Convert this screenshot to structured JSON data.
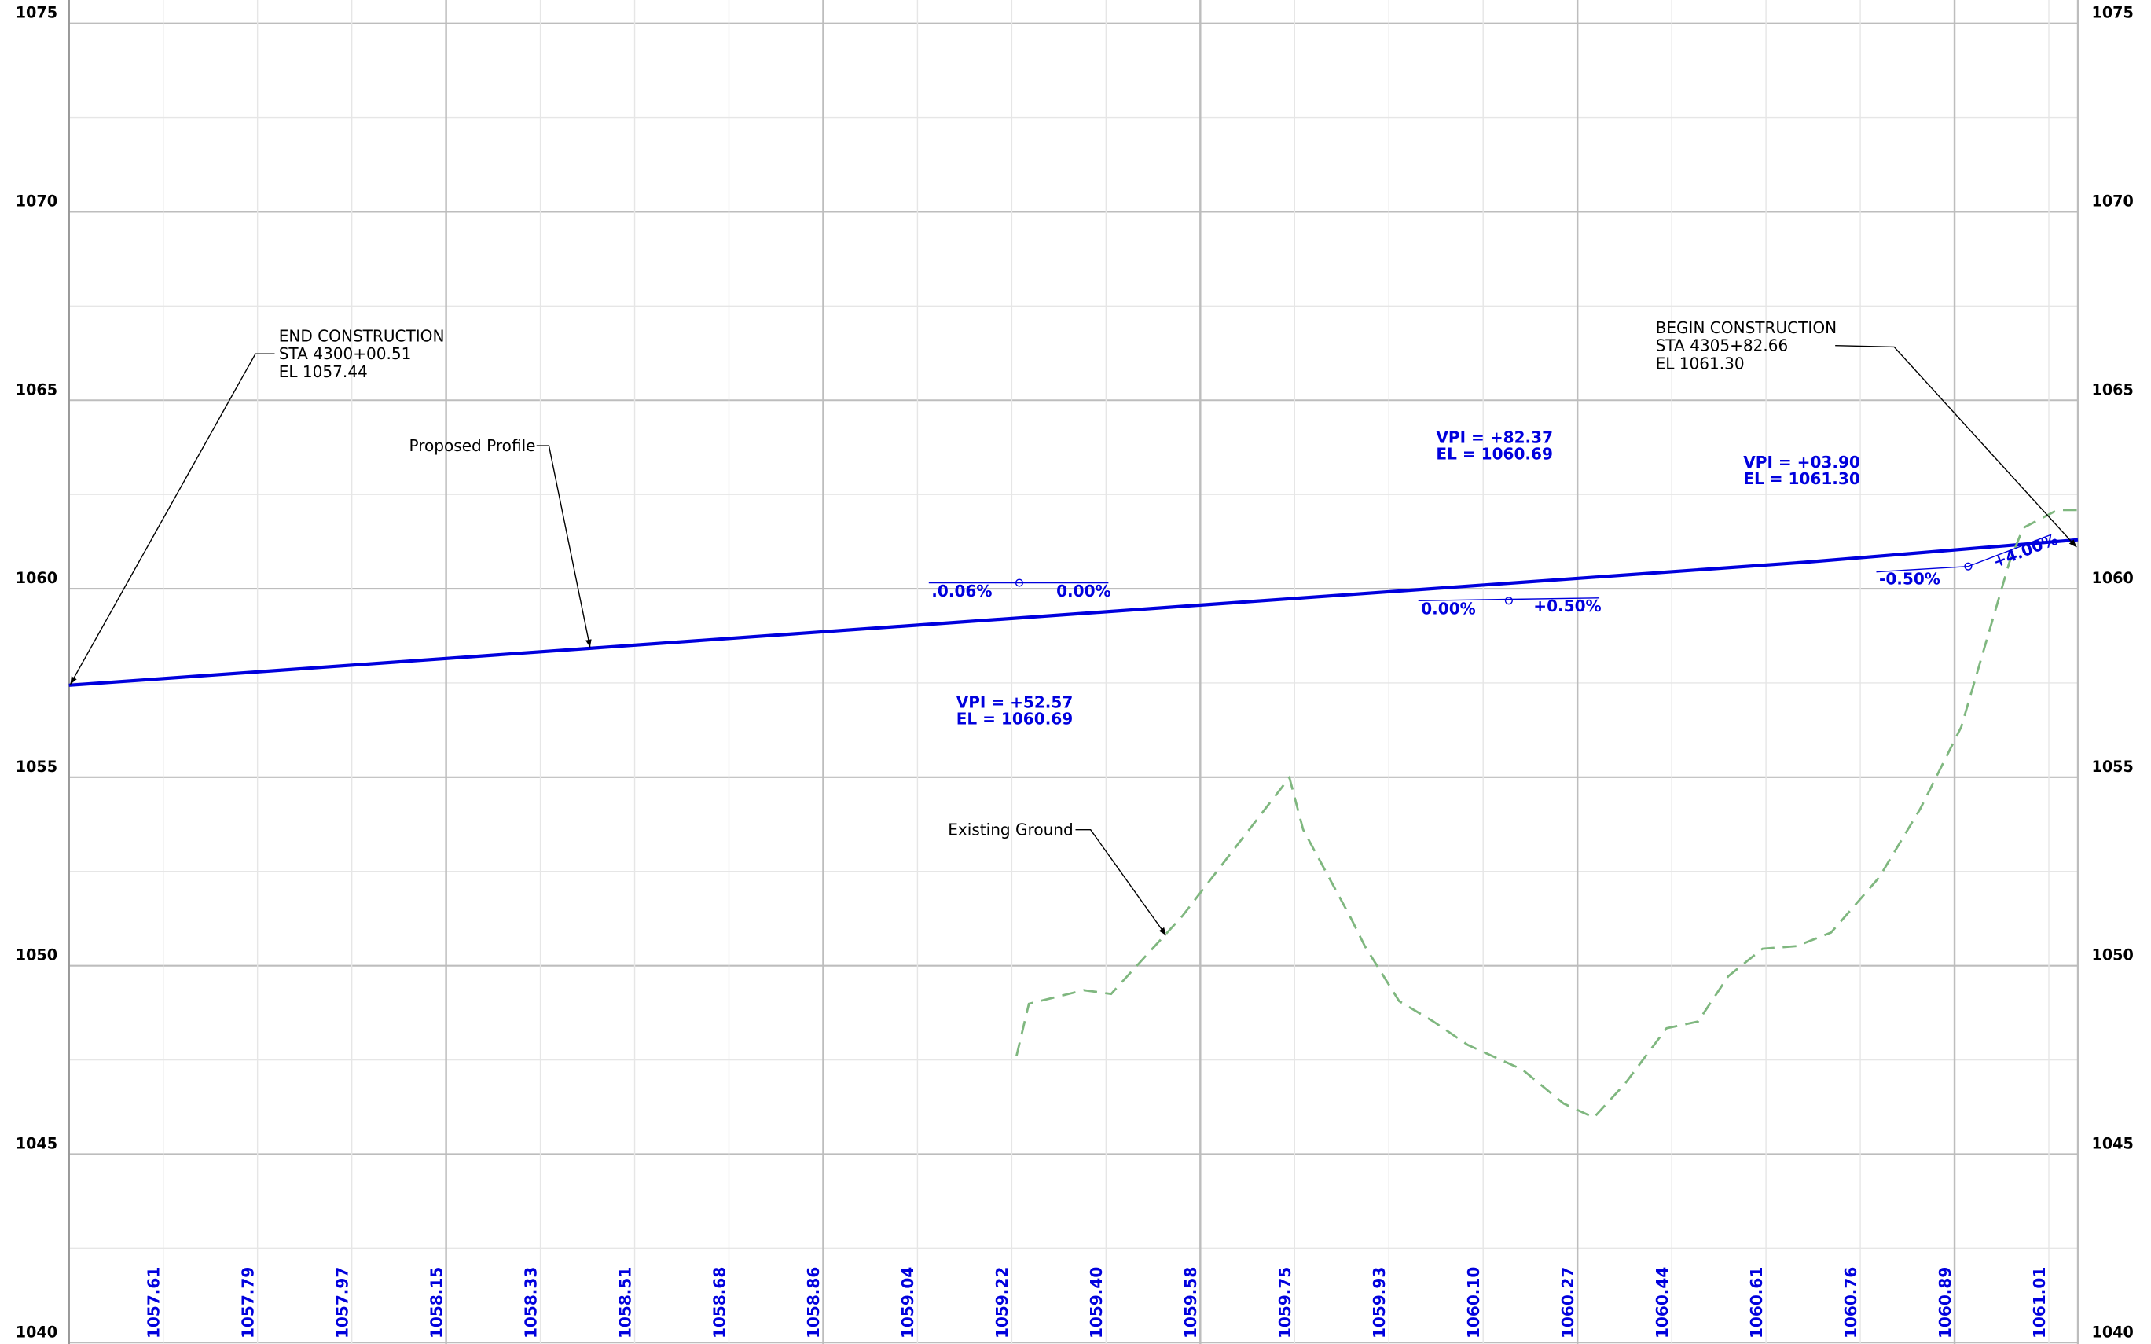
{
  "chart_data": {
    "type": "line",
    "xlim": [
      430000.51,
      430582.66
    ],
    "ylim": [
      1040,
      1075
    ],
    "yticks": [
      1040,
      1045,
      1050,
      1055,
      1060,
      1065,
      1070,
      1075
    ],
    "xticks": [
      {
        "value": 430027.83,
        "label": "1057.61"
      },
      {
        "value": 430055.15,
        "label": "1057.79"
      },
      {
        "value": 430082.47,
        "label": "1057.97"
      },
      {
        "value": 430109.79,
        "label": "1058.15"
      },
      {
        "value": 430137.11,
        "label": "1058.33"
      },
      {
        "value": 430164.43,
        "label": "1058.51"
      },
      {
        "value": 430191.75,
        "label": "1058.68"
      },
      {
        "value": 430219.07,
        "label": "1058.86"
      },
      {
        "value": 430246.39,
        "label": "1059.04"
      },
      {
        "value": 430273.71,
        "label": "1059.22"
      },
      {
        "value": 430301.03,
        "label": "1059.40"
      },
      {
        "value": 430328.35,
        "label": "1059.58"
      },
      {
        "value": 430355.67,
        "label": "1059.75"
      },
      {
        "value": 430382.99,
        "label": "1059.93"
      },
      {
        "value": 430410.31,
        "label": "1060.10"
      },
      {
        "value": 430437.63,
        "label": "1060.27"
      },
      {
        "value": 430464.95,
        "label": "1060.44"
      },
      {
        "value": 430492.27,
        "label": "1060.61"
      },
      {
        "value": 430519.59,
        "label": "1060.76"
      },
      {
        "value": 430546.91,
        "label": "1060.89"
      },
      {
        "value": 430574.23,
        "label": "1061.01"
      }
    ],
    "grid": true,
    "series": [
      {
        "name": "Proposed Profile",
        "color": "#0000dd",
        "x": [
          430000.51,
          430503.2,
          430582.66
        ],
        "values": [
          1057.44,
          1060.7,
          1061.3
        ]
      },
      {
        "name": "Existing Ground",
        "color": "#7fb77f",
        "x": [
          430275.09,
          430278.67,
          430294.56,
          430302.51,
          430310.46,
          430323.17,
          430354.17,
          430358.14,
          430372.05,
          430376.02,
          430385.96,
          430395.89,
          430405.83,
          430421.72,
          430433.64,
          430442.39,
          430451.52,
          430463.45,
          430472.59,
          430481.33,
          430491.26,
          430501.2,
          430511.13,
          430525.04,
          430536.96,
          430548.88,
          430562.79,
          430566.76,
          430576.7,
          430582.66
        ],
        "values": [
          1047.61,
          1048.99,
          1049.35,
          1049.25,
          1050.05,
          1051.32,
          1054.99,
          1053.61,
          1051.25,
          1050.52,
          1049.06,
          1048.52,
          1047.9,
          1047.24,
          1046.34,
          1045.97,
          1046.88,
          1048.34,
          1048.52,
          1049.72,
          1050.45,
          1050.52,
          1050.88,
          1052.34,
          1054.16,
          1056.34,
          1060.7,
          1061.61,
          1062.09,
          1062.09
        ]
      }
    ],
    "annotations": [
      "END CONSTRUCTION",
      "STA 4300+00.51",
      "EL 1057.44",
      "BEGIN CONSTRUCTION",
      "STA 4305+82.66",
      "EL 1061.30",
      "Proposed Profile",
      "Existing Ground",
      "VPI = +82.37",
      "EL = 1060.69",
      "VPI = +03.90",
      "EL = 1061.30",
      "VPI = +52.57",
      "EL = 1060.69",
      ".0.06%",
      "0.00%",
      "0.00%",
      "+0.50%",
      "-0.50%",
      "+4.00%"
    ]
  }
}
